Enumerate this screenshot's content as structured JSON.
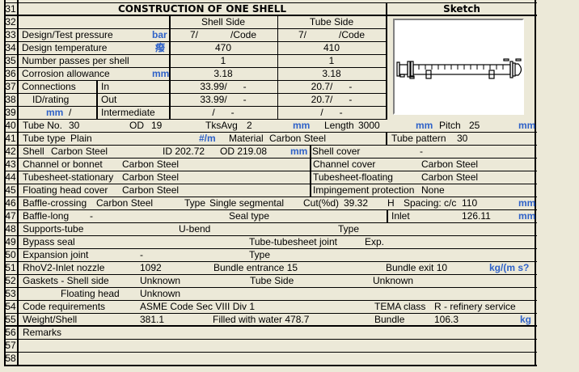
{
  "header": {
    "title": "CONSTRUCTION OF ONE SHELL",
    "sketch_label": "Sketch"
  },
  "units": {
    "bar": "bar",
    "temp": "癈",
    "mm": "mm",
    "perm": "#/m",
    "flux": "kg/(m s?",
    "kg": "kg"
  },
  "rows": {
    "31": "31",
    "32": "32",
    "33": "33",
    "34": "34",
    "35": "35",
    "36": "36",
    "37": "37",
    "38": "38",
    "39": "39",
    "40": "40",
    "41": "41",
    "42": "42",
    "43": "43",
    "44": "44",
    "45": "45",
    "46": "46",
    "47": "47",
    "48": "48",
    "49": "49",
    "50": "50",
    "51": "51",
    "52": "52",
    "53": "53",
    "54": "54",
    "55": "55",
    "56": "56",
    "57": "57",
    "58": "58"
  },
  "design": {
    "col_shell": "Shell Side",
    "col_tube": "Tube Side",
    "pressure": {
      "label": "Design/Test pressure",
      "shell": "7/            /Code",
      "tube": "7/            /Code"
    },
    "temperature": {
      "label": "Design temperature",
      "shell": "470",
      "tube": "410"
    },
    "passes": {
      "label": "Number passes per shell",
      "shell": "1",
      "tube": "1"
    },
    "corrosion": {
      "label": "Corrosion allowance",
      "shell": "3.18",
      "tube": "3.18"
    },
    "connections": {
      "label": "Connections",
      "label2": "ID/rating",
      "unit_sep": "/",
      "in": {
        "label": "In",
        "shell": "33.99/      -",
        "tube": "20.7/      -"
      },
      "out": {
        "label": "Out",
        "shell": "33.99/      -",
        "tube": "20.7/      -"
      },
      "intermediate": {
        "label": "Intermediate",
        "shell": "/      -",
        "tube": "/      -"
      }
    }
  },
  "tube": {
    "no_label": "Tube No.",
    "no": "30",
    "od_label": "OD",
    "od": "19",
    "tks_label": "TksAvg",
    "tks": "2",
    "length_label": "Length",
    "length": "3000",
    "pitch_label": "Pitch",
    "pitch": "25",
    "type_label": "Tube type",
    "type": "Plain",
    "material_label": "Material",
    "material": "Carbon Steel",
    "pattern_label": "Tube pattern",
    "pattern": "30"
  },
  "shell": {
    "label": "Shell",
    "material": "Carbon Steel",
    "id": "ID 202.72",
    "od": "OD 219.08",
    "cover_label": "Shell cover",
    "cover": "-"
  },
  "parts": [
    {
      "left_label": "Channel or bonnet",
      "left": "Carbon Steel",
      "right_label": "Channel cover",
      "right": "Carbon Steel"
    },
    {
      "left_label": "Tubesheet-stationary",
      "left": "Carbon Steel",
      "right_label": "Tubesheet-floating",
      "right": "Carbon Steel"
    },
    {
      "left_label": "Floating head cover",
      "left": "Carbon Steel",
      "right_label": "Impingement protection",
      "right": "None"
    }
  ],
  "baffle": {
    "crossing_label": "Baffle-crossing",
    "crossing": "Carbon Steel",
    "type_label": "Type",
    "type": "Single segmental",
    "cut_label": "Cut(%d)",
    "cut": "39.32",
    "cut_dir": "H",
    "spacing_label": "Spacing: c/c",
    "spacing": "110",
    "long_label": "Baffle-long",
    "long": "-",
    "seal_label": "Seal type",
    "inlet_label": "Inlet",
    "inlet": "126.11"
  },
  "supports": {
    "label": "Supports-tube",
    "ubend": "U-bend",
    "type": "Type"
  },
  "bypass": {
    "label": "Bypass seal",
    "joint_label": "Tube-tubesheet joint",
    "joint": "Exp."
  },
  "expansion": {
    "label": "Expansion joint",
    "value": "-",
    "type": "Type"
  },
  "rhov2": {
    "label": "RhoV2-Inlet nozzle",
    "value": "1092",
    "entrance": "Bundle entrance  15",
    "exit": "Bundle exit  10"
  },
  "gaskets": {
    "label": "Gaskets - Shell side",
    "shell": "Unknown",
    "tube_label": "Tube Side",
    "tube": "Unknown",
    "fh_label": "Floating head",
    "fh": "Unknown"
  },
  "code": {
    "label": "Code requirements",
    "value": "ASME Code Sec VIII Div 1",
    "tema_label": "TEMA class",
    "tema": "R - refinery service"
  },
  "weight": {
    "label": "Weight/Shell",
    "value": "381.1",
    "water": "Filled with water  478.7",
    "bundle_label": "Bundle",
    "bundle": "106.3"
  },
  "remarks": {
    "label": "Remarks"
  }
}
